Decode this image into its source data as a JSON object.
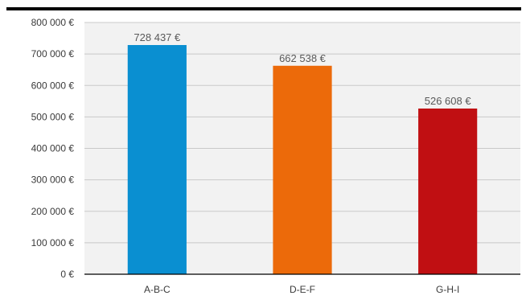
{
  "chart_data": {
    "type": "bar",
    "categories": [
      "A-B-C",
      "D-E-F",
      "G-H-I"
    ],
    "values": [
      728437,
      662538,
      526608
    ],
    "data_labels": [
      "728 437 €",
      "662 538 €",
      "526 608 €"
    ],
    "colors": [
      "#0a8fd1",
      "#ec6a0a",
      "#c00f12"
    ],
    "ylim": [
      0,
      800000
    ],
    "y_ticks": [
      0,
      100000,
      200000,
      300000,
      400000,
      500000,
      600000,
      700000,
      800000
    ],
    "y_tick_labels": [
      "0 €",
      "100 000 €",
      "200 000 €",
      "300 000 €",
      "400 000 €",
      "500 000 €",
      "600 000 €",
      "700 000 €",
      "800 000 €"
    ],
    "grid": true,
    "plot_background": "#f2f2f2",
    "title": "",
    "xlabel": "",
    "ylabel": ""
  }
}
